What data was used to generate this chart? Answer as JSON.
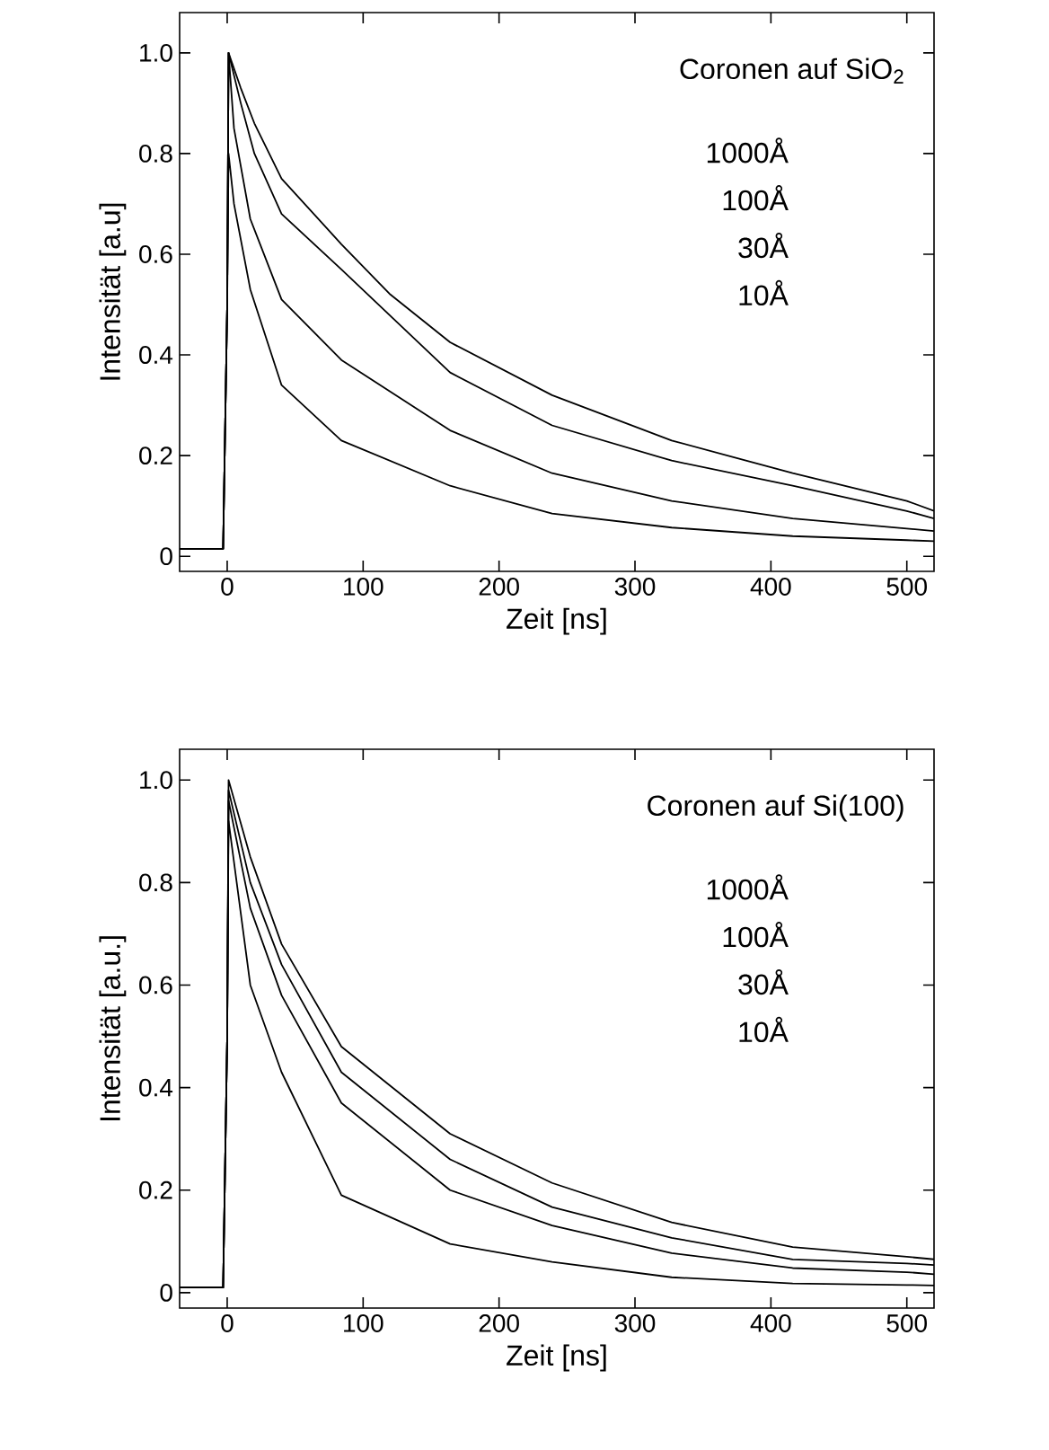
{
  "chart_data": [
    {
      "type": "line",
      "title": "Coronen auf SiO$_{2}$",
      "xlabel": "Zeit [ns]",
      "ylabel": "Intensität [a.u]",
      "annotations": [
        "1000Å",
        "100Å",
        "30Å",
        "10Å"
      ],
      "grid": false,
      "marker": "none",
      "line_style": "solid",
      "xlim": [
        -35,
        520
      ],
      "ylim": [
        -0.03,
        1.08
      ],
      "xticks": [
        0,
        100,
        200,
        300,
        400,
        500
      ],
      "yticks": [
        0,
        0.2,
        0.4,
        0.6,
        0.8,
        {
          "value": 1,
          "label": "1.0"
        }
      ],
      "series": [
        {
          "color": "#000000",
          "x": [
            -35,
            -3,
            0,
            1,
            10,
            20,
            40,
            84,
            120,
            164,
            239,
            327,
            416,
            500,
            520
          ],
          "values": [
            0.015,
            0.015,
            0.5,
            1.0,
            0.93,
            0.86,
            0.75,
            0.62,
            0.52,
            0.425,
            0.32,
            0.23,
            0.165,
            0.11,
            0.09
          ]
        },
        {
          "color": "#000000",
          "x": [
            -35,
            -3,
            0,
            1,
            10,
            20,
            40,
            84,
            164,
            239,
            327,
            416,
            500,
            520
          ],
          "values": [
            0.015,
            0.015,
            0.5,
            1.0,
            0.9,
            0.8,
            0.68,
            0.57,
            0.365,
            0.26,
            0.19,
            0.14,
            0.09,
            0.075
          ]
        },
        {
          "color": "#000000",
          "x": [
            -35,
            -3,
            0,
            1,
            5,
            17,
            40,
            84,
            164,
            239,
            327,
            416,
            500,
            520
          ],
          "values": [
            0.015,
            0.015,
            0.5,
            1.0,
            0.85,
            0.67,
            0.51,
            0.39,
            0.25,
            0.165,
            0.11,
            0.075,
            0.055,
            0.05
          ]
        },
        {
          "color": "#000000",
          "x": [
            -35,
            -3,
            0,
            1,
            5,
            17,
            40,
            84,
            164,
            239,
            327,
            416,
            500,
            520
          ],
          "values": [
            0.015,
            0.015,
            0.5,
            0.8,
            0.7,
            0.53,
            0.34,
            0.23,
            0.14,
            0.085,
            0.057,
            0.04,
            0.032,
            0.03
          ]
        }
      ]
    },
    {
      "type": "line",
      "title": "Coronen auf Si(100)",
      "xlabel": "Zeit [ns]",
      "ylabel": "Intensität [a.u.]",
      "annotations": [
        "1000Å",
        "100Å",
        "30Å",
        "10Å"
      ],
      "grid": false,
      "marker": "none",
      "line_style": "solid",
      "xlim": [
        -35,
        520
      ],
      "ylim": [
        -0.03,
        1.06
      ],
      "xticks": [
        0,
        100,
        200,
        300,
        400,
        500
      ],
      "yticks": [
        0,
        0.2,
        0.4,
        0.6,
        0.8,
        {
          "value": 1,
          "label": "1.0"
        }
      ],
      "series": [
        {
          "color": "#000000",
          "x": [
            -35,
            -3,
            0,
            1,
            17,
            40,
            84,
            164,
            239,
            327,
            416,
            500,
            520
          ],
          "values": [
            0.01,
            0.01,
            0.5,
            1.0,
            0.85,
            0.68,
            0.48,
            0.31,
            0.214,
            0.137,
            0.089,
            0.07,
            0.065
          ]
        },
        {
          "color": "#000000",
          "x": [
            -35,
            -3,
            0,
            1,
            17,
            40,
            84,
            164,
            239,
            327,
            416,
            500,
            520
          ],
          "values": [
            0.01,
            0.01,
            0.5,
            0.98,
            0.8,
            0.64,
            0.43,
            0.26,
            0.167,
            0.107,
            0.065,
            0.057,
            0.054
          ]
        },
        {
          "color": "#000000",
          "x": [
            -35,
            -3,
            0,
            1,
            17,
            40,
            84,
            164,
            239,
            327,
            416,
            500,
            520
          ],
          "values": [
            0.01,
            0.01,
            0.5,
            0.96,
            0.75,
            0.58,
            0.37,
            0.2,
            0.131,
            0.077,
            0.048,
            0.04,
            0.036
          ]
        },
        {
          "color": "#000000",
          "x": [
            -35,
            -3,
            0,
            1,
            17,
            40,
            84,
            164,
            239,
            327,
            416,
            500,
            520
          ],
          "values": [
            0.01,
            0.01,
            0.5,
            0.92,
            0.6,
            0.43,
            0.19,
            0.095,
            0.06,
            0.03,
            0.018,
            0.015,
            0.014
          ]
        }
      ]
    }
  ]
}
